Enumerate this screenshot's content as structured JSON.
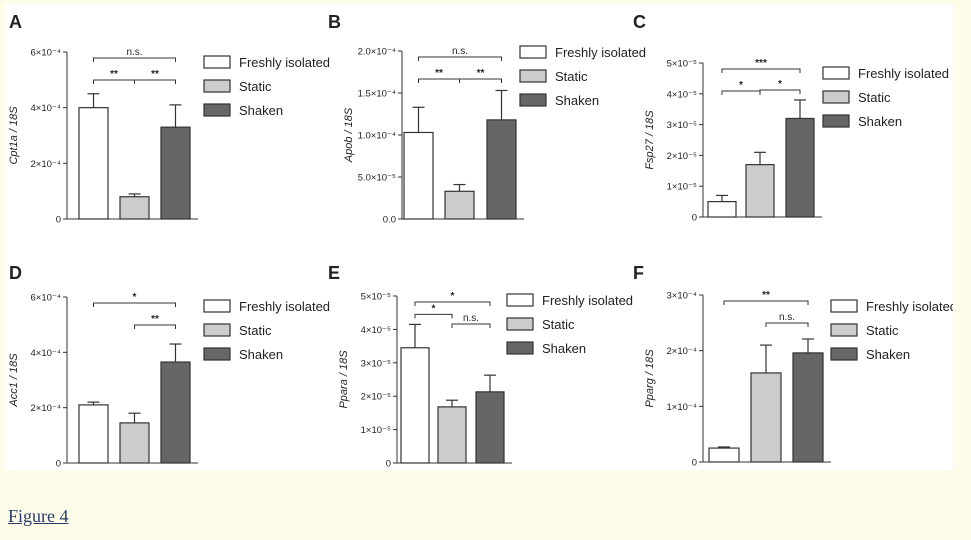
{
  "caption": {
    "link_text": "Figure 4"
  },
  "legend_labels": [
    "Freshly isolated",
    "Static",
    "Shaken"
  ],
  "colors": {
    "freshly": "#ffffff",
    "static": "#cccccc",
    "shaken": "#666666",
    "axis": "#333333"
  },
  "chart_data": [
    {
      "panel": "A",
      "type": "bar",
      "ylabel": "Cpt1a / 18S",
      "categories": [
        "Freshly isolated",
        "Static",
        "Shaken"
      ],
      "values": [
        0.0004,
        8e-05,
        0.00033
      ],
      "errors": [
        5e-05,
        1e-05,
        8e-05
      ],
      "ylim": [
        0,
        0.0006
      ],
      "yticks": [
        {
          "v": 0,
          "label": "0"
        },
        {
          "v": 0.0002,
          "label": "2×10⁻⁴"
        },
        {
          "v": 0.0004,
          "label": "4×10⁻⁴"
        },
        {
          "v": 0.0006,
          "label": "6×10⁻⁴"
        }
      ],
      "brackets": [
        {
          "from": 0,
          "to": 1,
          "label": "**"
        },
        {
          "from": 1,
          "to": 2,
          "label": "**"
        },
        {
          "from": 0,
          "to": 2,
          "label": "n.s."
        }
      ]
    },
    {
      "panel": "B",
      "type": "bar",
      "ylabel": "Apob / 18S",
      "categories": [
        "Freshly isolated",
        "Static",
        "Shaken"
      ],
      "values": [
        0.000103,
        3.3e-05,
        0.000118
      ],
      "errors": [
        3e-05,
        8e-06,
        3.5e-05
      ],
      "ylim": [
        0,
        0.0002
      ],
      "yticks": [
        {
          "v": 0,
          "label": "0.0"
        },
        {
          "v": 5e-05,
          "label": "5.0×10⁻⁵"
        },
        {
          "v": 0.0001,
          "label": "1.0×10⁻⁴"
        },
        {
          "v": 0.00015,
          "label": "1.5×10⁻⁴"
        },
        {
          "v": 0.0002,
          "label": "2.0×10⁻⁴"
        }
      ],
      "brackets": [
        {
          "from": 0,
          "to": 1,
          "label": "**"
        },
        {
          "from": 1,
          "to": 2,
          "label": "**"
        },
        {
          "from": 0,
          "to": 2,
          "label": "n.s."
        }
      ]
    },
    {
      "panel": "C",
      "type": "bar",
      "ylabel": "Fsp27 / 18S",
      "categories": [
        "Freshly isolated",
        "Static",
        "Shaken"
      ],
      "values": [
        5e-06,
        1.7e-05,
        3.2e-05
      ],
      "errors": [
        2e-06,
        4e-06,
        6e-06
      ],
      "ylim": [
        0,
        5e-05
      ],
      "yticks": [
        {
          "v": 0,
          "label": "0"
        },
        {
          "v": 1e-05,
          "label": "1×10⁻⁵"
        },
        {
          "v": 2e-05,
          "label": "2×10⁻⁵"
        },
        {
          "v": 3e-05,
          "label": "3×10⁻⁵"
        },
        {
          "v": 4e-05,
          "label": "4×10⁻⁵"
        },
        {
          "v": 5e-05,
          "label": "5×10⁻⁵"
        }
      ],
      "brackets": [
        {
          "from": 0,
          "to": 1,
          "label": "*"
        },
        {
          "from": 1,
          "to": 2,
          "label": "*"
        },
        {
          "from": 0,
          "to": 2,
          "label": "***"
        }
      ]
    },
    {
      "panel": "D",
      "type": "bar",
      "ylabel": "Acc1 / 18S",
      "categories": [
        "Freshly isolated",
        "Static",
        "Shaken"
      ],
      "values": [
        0.00021,
        0.000145,
        0.000365
      ],
      "errors": [
        1e-05,
        3.5e-05,
        6.5e-05
      ],
      "ylim": [
        0,
        0.0006
      ],
      "yticks": [
        {
          "v": 0,
          "label": "0"
        },
        {
          "v": 0.0002,
          "label": "2×10⁻⁴"
        },
        {
          "v": 0.0004,
          "label": "4×10⁻⁴"
        },
        {
          "v": 0.0006,
          "label": "6×10⁻⁴"
        }
      ],
      "brackets": [
        {
          "from": 1,
          "to": 2,
          "label": "**"
        },
        {
          "from": 0,
          "to": 2,
          "label": "*"
        }
      ]
    },
    {
      "panel": "E",
      "type": "bar",
      "ylabel": "Ppara / 18S",
      "categories": [
        "Freshly isolated",
        "Static",
        "Shaken"
      ],
      "values": [
        3.45e-05,
        1.68e-05,
        2.13e-05
      ],
      "errors": [
        7e-06,
        2e-06,
        5e-06
      ],
      "ylim": [
        0,
        5e-05
      ],
      "yticks": [
        {
          "v": 0,
          "label": "0"
        },
        {
          "v": 1e-05,
          "label": "1×10⁻⁵"
        },
        {
          "v": 2e-05,
          "label": "2×10⁻⁵"
        },
        {
          "v": 3e-05,
          "label": "3×10⁻⁵"
        },
        {
          "v": 4e-05,
          "label": "4×10⁻⁵"
        },
        {
          "v": 5e-05,
          "label": "5×10⁻⁵"
        }
      ],
      "brackets": [
        {
          "from": 0,
          "to": 1,
          "label": "*"
        },
        {
          "from": 1,
          "to": 2,
          "label": "n.s."
        },
        {
          "from": 0,
          "to": 2,
          "label": "*"
        }
      ]
    },
    {
      "panel": "F",
      "type": "bar",
      "ylabel": "Pparg / 18S",
      "categories": [
        "Freshly isolated",
        "Static",
        "Shaken"
      ],
      "values": [
        2.5e-05,
        0.00016,
        0.000196
      ],
      "errors": [
        2e-06,
        5e-05,
        2.5e-05
      ],
      "ylim": [
        0,
        0.0003
      ],
      "yticks": [
        {
          "v": 0,
          "label": "0"
        },
        {
          "v": 0.0001,
          "label": "1×10⁻⁴"
        },
        {
          "v": 0.0002,
          "label": "2×10⁻⁴"
        },
        {
          "v": 0.0003,
          "label": "3×10⁻⁴"
        }
      ],
      "brackets": [
        {
          "from": 1,
          "to": 2,
          "label": "n.s."
        },
        {
          "from": 0,
          "to": 2,
          "label": "**"
        }
      ]
    }
  ]
}
